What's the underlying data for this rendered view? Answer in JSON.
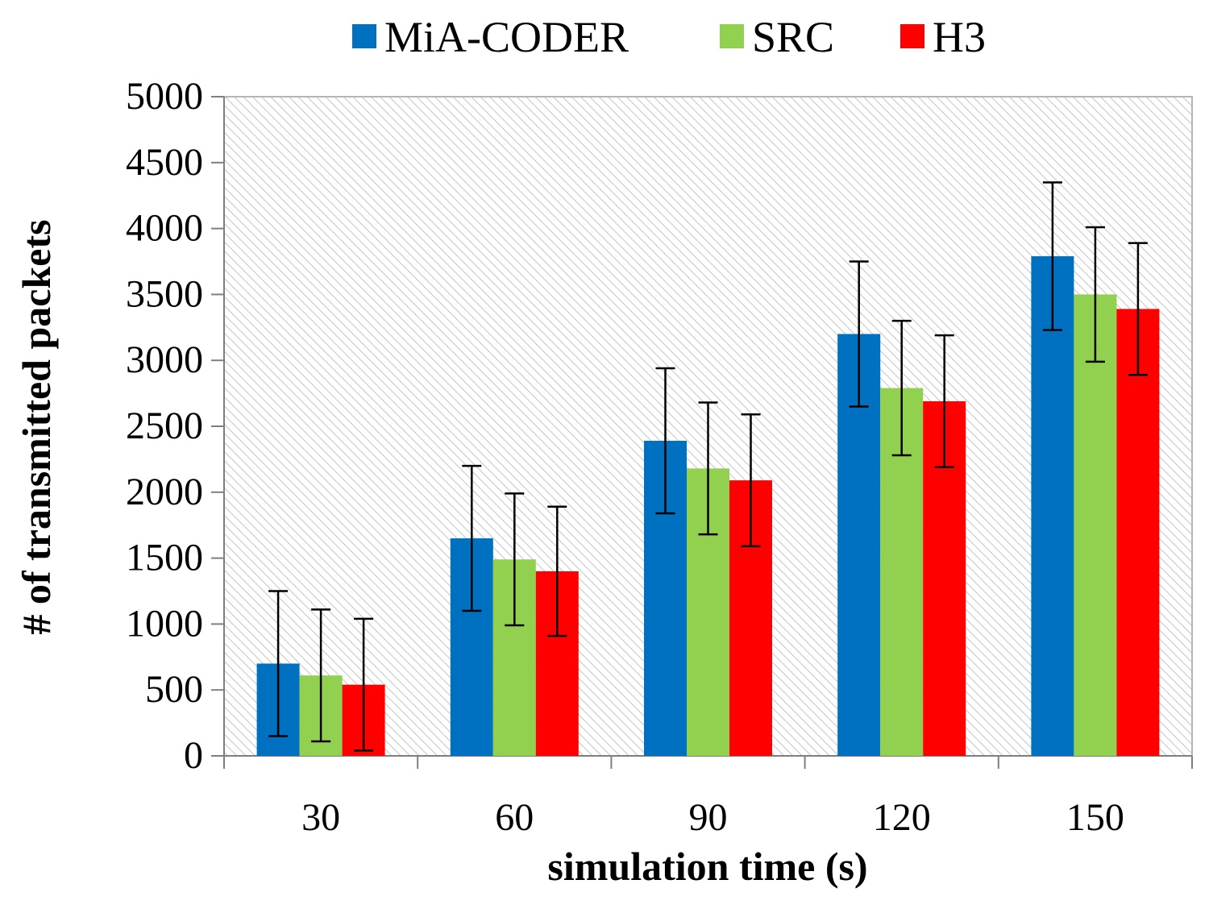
{
  "chart_data": {
    "type": "bar",
    "title": "",
    "xlabel": "simulation time (s)",
    "ylabel": "# of transmitted packets",
    "categories": [
      "30",
      "60",
      "90",
      "120",
      "150"
    ],
    "ylim": [
      0,
      5000
    ],
    "yticks": [
      0,
      500,
      1000,
      1500,
      2000,
      2500,
      3000,
      3500,
      4000,
      4500,
      5000
    ],
    "grid": false,
    "background": "hatched",
    "legend_position": "top",
    "series": [
      {
        "name": "MiA-CODER",
        "color": "#0070C0",
        "values": [
          700,
          1650,
          2390,
          3200,
          3790
        ],
        "error": [
          550,
          550,
          550,
          550,
          560
        ]
      },
      {
        "name": "SRC",
        "color": "#92D050",
        "values": [
          610,
          1490,
          2180,
          2790,
          3500
        ],
        "error": [
          500,
          500,
          500,
          510,
          510
        ]
      },
      {
        "name": "H3",
        "color": "#FF0000",
        "values": [
          540,
          1400,
          2090,
          2690,
          3390
        ],
        "error": [
          500,
          490,
          500,
          500,
          500
        ]
      }
    ]
  }
}
